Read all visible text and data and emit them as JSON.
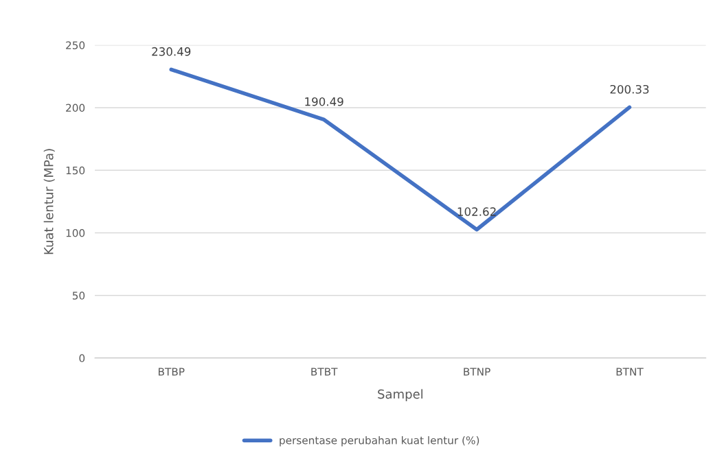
{
  "chart_data": {
    "type": "line",
    "xlabel": "Sampel",
    "ylabel": "Kuat lentur (MPa)",
    "categories": [
      "BTBP",
      "BTBT",
      "BTNP",
      "BTNT"
    ],
    "series": [
      {
        "name": "persentase perubahan kuat lentur (%)",
        "color": "#4472c4",
        "values": [
          230.49,
          190.49,
          102.62,
          200.33
        ]
      }
    ],
    "ylim": [
      0,
      250
    ],
    "yticks": [
      0,
      50,
      100,
      150,
      200,
      250
    ],
    "grid": "y",
    "legend": "bottom",
    "data_labels": true,
    "marker": "none",
    "line_style": "solid"
  }
}
